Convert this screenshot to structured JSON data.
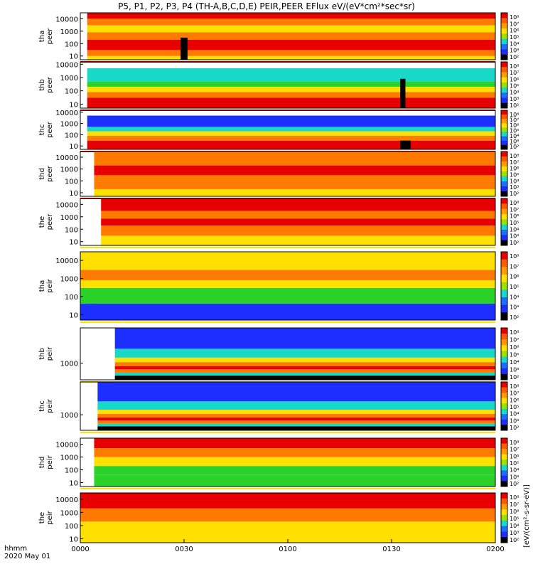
{
  "title": "P5, P1, P2, P3, P4 (TH-A,B,C,D,E) PEIR,PEER EFlux eV/(eV*cm²*sec*sr)",
  "time_axis": {
    "label_line1": "hhmm",
    "label_line2": "2020 May 01",
    "ticks": [
      "0000",
      "0030",
      "0100",
      "0130",
      "0200"
    ],
    "range_minutes": [
      0,
      120
    ]
  },
  "colorbar_label": "[eV/(cm²-s-sr-eV)]",
  "colorbar_ticks": [
    "10⁸",
    "10⁷",
    "10⁶",
    "10⁵",
    "10⁴",
    "10³",
    "10²"
  ],
  "colors": {
    "red": "#e60000",
    "orange": "#ff7a00",
    "yellow": "#ffe000",
    "green": "#2ad22a",
    "cyan": "#19d8c8",
    "blue": "#1d2fff",
    "black": "#000000",
    "white": "#ffffff"
  },
  "chart_data": {
    "type": "heatmap",
    "x_unit": "minutes after 0000 UT",
    "xlim": [
      0,
      120
    ],
    "grid": false,
    "panels": [
      {
        "probe": "tha",
        "species": "peer",
        "ylim": [
          5,
          30000
        ],
        "yscale": "log",
        "yticks": [
          "10000",
          "1000",
          "100",
          "10"
        ],
        "data_start": 2,
        "bands": [
          [
            5,
            10,
            "yellow"
          ],
          [
            10,
            30,
            "orange"
          ],
          [
            30,
            200,
            "red"
          ],
          [
            200,
            800,
            "orange"
          ],
          [
            800,
            3000,
            "yellow"
          ],
          [
            3000,
            10000,
            "orange"
          ],
          [
            10000,
            30000,
            "red"
          ]
        ],
        "gaps": [
          {
            "t0": 29,
            "t1": 31,
            "color": "black",
            "y1": 300
          }
        ]
      },
      {
        "probe": "thb",
        "species": "peer",
        "ylim": [
          5,
          15000
        ],
        "yscale": "log",
        "yticks": [
          "10000",
          "1000",
          "100",
          "10"
        ],
        "data_start": 2,
        "bands": [
          [
            5,
            30,
            "red"
          ],
          [
            30,
            80,
            "orange"
          ],
          [
            80,
            200,
            "yellow"
          ],
          [
            200,
            500,
            "green"
          ],
          [
            500,
            5000,
            "cyan"
          ]
        ],
        "gaps": [
          {
            "t0": 92.5,
            "t1": 94,
            "color": "black",
            "y1": 800
          }
        ]
      },
      {
        "probe": "thc",
        "species": "peer",
        "ylim": [
          5,
          15000
        ],
        "yscale": "log",
        "yticks": [
          "10000",
          "1000",
          "100",
          "10"
        ],
        "data_start": 2,
        "bands": [
          [
            5,
            30,
            "red"
          ],
          [
            30,
            80,
            "orange"
          ],
          [
            80,
            200,
            "yellow"
          ],
          [
            200,
            500,
            "cyan"
          ],
          [
            500,
            5000,
            "blue"
          ]
        ],
        "gaps": [
          {
            "t0": 92.5,
            "t1": 95.5,
            "color": "black",
            "y1": 30
          }
        ]
      },
      {
        "probe": "thd",
        "species": "peer",
        "ylim": [
          5,
          30000
        ],
        "yscale": "log",
        "yticks": [
          "10000",
          "1000",
          "100",
          "10"
        ],
        "data_start": 4,
        "bands": [
          [
            5,
            20,
            "yellow"
          ],
          [
            20,
            80,
            "orange"
          ],
          [
            80,
            300,
            "orange"
          ],
          [
            300,
            2000,
            "red"
          ],
          [
            2000,
            30000,
            "orange"
          ]
        ],
        "gaps": []
      },
      {
        "probe": "the",
        "species": "peer",
        "ylim": [
          5,
          30000
        ],
        "yscale": "log",
        "yticks": [
          "10000",
          "1000",
          "100",
          "10"
        ],
        "data_start": 6,
        "bands": [
          [
            5,
            30,
            "yellow"
          ],
          [
            30,
            200,
            "orange"
          ],
          [
            200,
            700,
            "red"
          ],
          [
            700,
            3000,
            "orange"
          ],
          [
            3000,
            30000,
            "red"
          ]
        ],
        "gaps": []
      },
      {
        "probe": "tha",
        "species": "peir",
        "ylim": [
          5,
          30000
        ],
        "yscale": "log",
        "yticks": [
          "10000",
          "1000",
          "100",
          "10"
        ],
        "data_start": 0,
        "bands": [
          [
            5,
            40,
            "blue"
          ],
          [
            40,
            300,
            "green"
          ],
          [
            300,
            800,
            "yellow"
          ],
          [
            800,
            3000,
            "orange"
          ],
          [
            3000,
            30000,
            "yellow"
          ]
        ],
        "gaps": []
      },
      {
        "probe": "thb",
        "species": "peir",
        "ylim": [
          200,
          30000
        ],
        "yscale": "log",
        "yticks": [
          "1000"
        ],
        "data_start": 10,
        "bands": [
          [
            200,
            300,
            "black"
          ],
          [
            300,
            400,
            "cyan"
          ],
          [
            400,
            550,
            "orange"
          ],
          [
            550,
            750,
            "red"
          ],
          [
            750,
            1100,
            "orange"
          ],
          [
            1100,
            1700,
            "yellow"
          ],
          [
            1700,
            4000,
            "cyan"
          ],
          [
            4000,
            30000,
            "blue"
          ]
        ],
        "gaps": []
      },
      {
        "probe": "thc",
        "species": "peir",
        "ylim": [
          200,
          30000
        ],
        "yscale": "log",
        "yticks": [
          "1000"
        ],
        "data_start": 5,
        "bands": [
          [
            200,
            300,
            "black"
          ],
          [
            300,
            400,
            "cyan"
          ],
          [
            400,
            550,
            "orange"
          ],
          [
            550,
            750,
            "red"
          ],
          [
            750,
            1100,
            "orange"
          ],
          [
            1100,
            1700,
            "yellow"
          ],
          [
            1700,
            4000,
            "cyan"
          ],
          [
            4000,
            30000,
            "blue"
          ]
        ],
        "gaps": []
      },
      {
        "probe": "thd",
        "species": "peir",
        "ylim": [
          5,
          30000
        ],
        "yscale": "log",
        "yticks": [
          "10000",
          "1000",
          "100",
          "10"
        ],
        "data_start": 4,
        "bands": [
          [
            5,
            40,
            "green"
          ],
          [
            40,
            200,
            "green"
          ],
          [
            200,
            1000,
            "yellow"
          ],
          [
            1000,
            5000,
            "orange"
          ],
          [
            5000,
            30000,
            "red"
          ]
        ],
        "gaps": []
      },
      {
        "probe": "the",
        "species": "peir",
        "ylim": [
          5,
          30000
        ],
        "yscale": "log",
        "yticks": [
          "10000",
          "1000",
          "100",
          "10"
        ],
        "data_start": 0,
        "bands": [
          [
            5,
            200,
            "yellow"
          ],
          [
            200,
            2000,
            "orange"
          ],
          [
            2000,
            30000,
            "red"
          ]
        ],
        "gaps": []
      }
    ]
  }
}
